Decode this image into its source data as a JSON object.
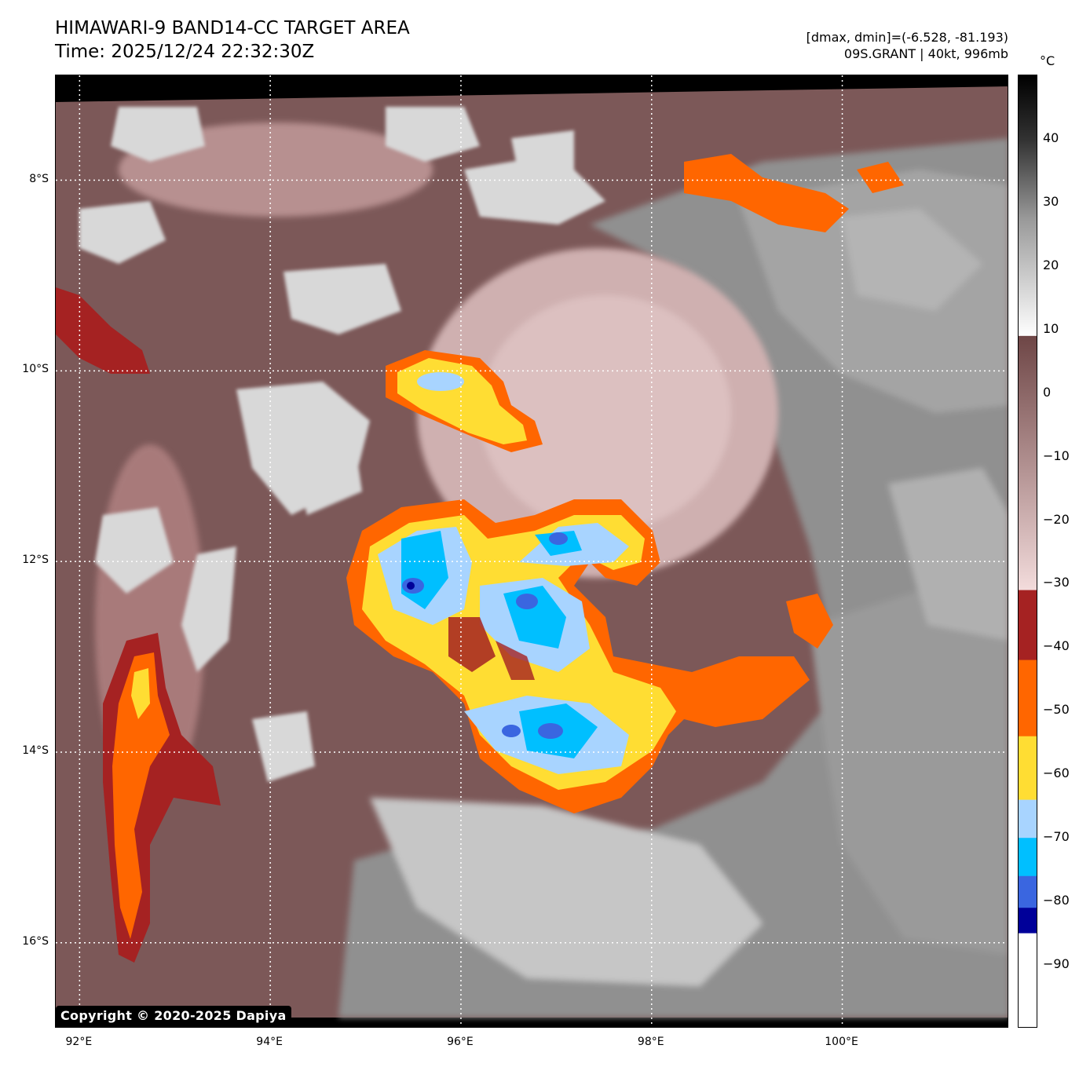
{
  "header": {
    "title_line1": "HIMAWARI-9 BAND14-CC TARGET AREA",
    "title_line2": "Time: 2025/12/24 22:32:30Z",
    "info_line1": "[dmax, dmin]=(-6.528, -81.193)",
    "info_line2": "09S.GRANT | 40kt, 996mb"
  },
  "map": {
    "lat_labels": [
      "8°S",
      "10°S",
      "12°S",
      "14°S",
      "16°S"
    ],
    "lon_labels": [
      "92°E",
      "94°E",
      "96°E",
      "98°E",
      "100°E"
    ],
    "lat_values": [
      -8,
      -10,
      -12,
      -14,
      -16
    ],
    "lon_values": [
      92,
      94,
      96,
      98,
      100
    ],
    "lon_range": [
      91.75,
      101.75
    ],
    "lat_range": [
      -6.9,
      -16.9
    ],
    "copyright": "Copyright © 2020-2025 Dapiya"
  },
  "colorbar": {
    "unit": "°C",
    "range": [
      -100,
      50
    ],
    "ticks": [
      "40",
      "30",
      "20",
      "10",
      "0",
      "−10",
      "−20",
      "−30",
      "−40",
      "−50",
      "−60",
      "−70",
      "−80",
      "−90"
    ],
    "tick_values": [
      40,
      30,
      20,
      10,
      0,
      -10,
      -20,
      -30,
      -40,
      -50,
      -60,
      -70,
      -80,
      -90
    ],
    "segments": [
      {
        "from": 50,
        "to": 9,
        "color": "gradient-grey"
      },
      {
        "from": 9,
        "to": -31,
        "color": "gradient-brown-pink"
      },
      {
        "from": -31,
        "to": -42,
        "color": "#a52222"
      },
      {
        "from": -42,
        "to": -54,
        "color": "#ff6600"
      },
      {
        "from": -54,
        "to": -64,
        "color": "#ffdd33"
      },
      {
        "from": -64,
        "to": -70,
        "color": "#a8d4ff"
      },
      {
        "from": -70,
        "to": -76,
        "color": "#00bfff"
      },
      {
        "from": -76,
        "to": -81,
        "color": "#3a66e0"
      },
      {
        "from": -81,
        "to": -85,
        "color": "#000099"
      },
      {
        "from": -85,
        "to": -100,
        "color": "#ffffff"
      }
    ]
  }
}
